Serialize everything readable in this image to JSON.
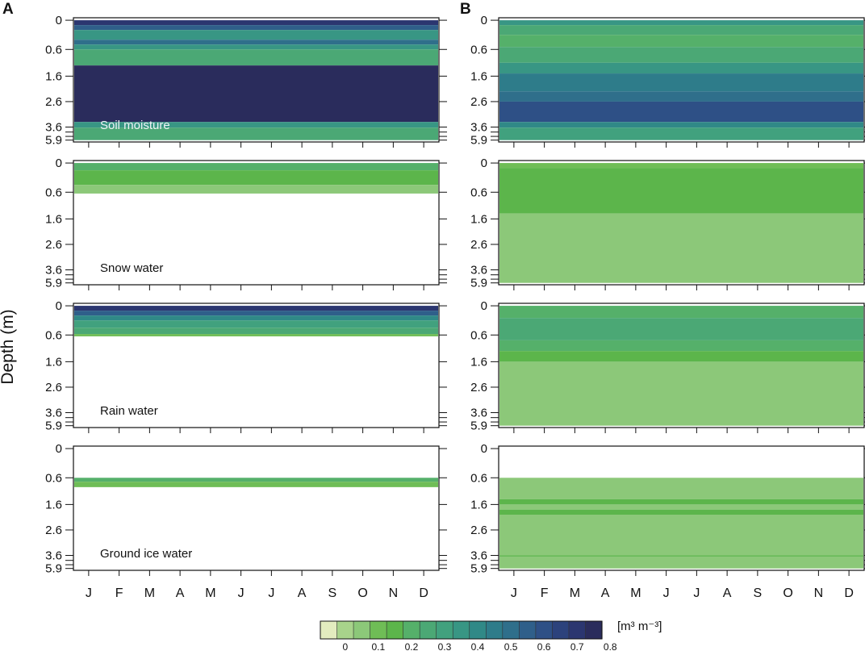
{
  "figure": {
    "y_axis_label": "Depth (m)",
    "colorbar_units": "[m³ m⁻³]"
  },
  "chart_data": {
    "type": "heatmap",
    "description": "Monthly soil water content contour plots versus depth; column A and column B, four water components each",
    "months": [
      "J",
      "F",
      "M",
      "A",
      "M",
      "J",
      "J",
      "A",
      "S",
      "O",
      "N",
      "D"
    ],
    "depth_ticks": [
      "0",
      "0.6",
      "1.6",
      "2.6",
      "3.6",
      "5.9"
    ],
    "colorbar": {
      "levels": [
        0,
        0.05,
        0.1,
        0.15,
        0.2,
        0.25,
        0.3,
        0.35,
        0.4,
        0.45,
        0.5,
        0.55,
        0.6,
        0.65,
        0.7,
        0.75,
        0.8,
        0.85
      ],
      "tick_labels": [
        "0",
        "0.1",
        "0.2",
        "0.3",
        "0.4",
        "0.5",
        "0.6",
        "0.7",
        "0.8"
      ],
      "colors": [
        "#e3ecbf",
        "#a8d38b",
        "#8cc879",
        "#6fbd56",
        "#5cb54b",
        "#55b06a",
        "#4ba875",
        "#41a17e",
        "#389684",
        "#308987",
        "#2e7c8a",
        "#2f6f8b",
        "#2f5f8a",
        "#2e5086",
        "#2c427c",
        "#2b3670",
        "#2a2c5c"
      ],
      "label": "[m³ m⁻³]"
    },
    "panels": [
      {
        "column": "A",
        "name": "Soil moisture",
        "layers": [
          {
            "from": 0,
            "to": 0.1,
            "value": 0.75
          },
          {
            "from": 0.1,
            "to": 0.2,
            "value": 0.6
          },
          {
            "from": 0.2,
            "to": 0.4,
            "value": 0.42
          },
          {
            "from": 0.4,
            "to": 0.5,
            "value": 0.55
          },
          {
            "from": 0.5,
            "to": 0.6,
            "value": 0.42
          },
          {
            "from": 0.6,
            "to": 1.2,
            "value": 0.34
          },
          {
            "from": 1.2,
            "to": 3.4,
            "value": 0.8
          },
          {
            "from": 3.4,
            "to": 3.7,
            "value": 0.42
          },
          {
            "from": 3.7,
            "to": 5.9,
            "value": 0.33
          }
        ]
      },
      {
        "column": "A",
        "name": "Snow water",
        "layers": [
          {
            "from": 0,
            "to": 0.15,
            "value": 0.25
          },
          {
            "from": 0.15,
            "to": 0.45,
            "value": 0.2
          },
          {
            "from": 0.45,
            "to": 0.65,
            "value": 0.12
          }
        ]
      },
      {
        "column": "A",
        "name": "Rain water",
        "layers": [
          {
            "from": 0,
            "to": 0.1,
            "value": 0.75
          },
          {
            "from": 0.1,
            "to": 0.2,
            "value": 0.6
          },
          {
            "from": 0.2,
            "to": 0.3,
            "value": 0.48
          },
          {
            "from": 0.3,
            "to": 0.45,
            "value": 0.38
          },
          {
            "from": 0.45,
            "to": 0.58,
            "value": 0.3
          },
          {
            "from": 0.58,
            "to": 0.65,
            "value": 0.15
          }
        ]
      },
      {
        "column": "A",
        "name": "Ground ice water",
        "layers": [
          {
            "from": 0.6,
            "to": 0.75,
            "value": 0.25
          },
          {
            "from": 0.75,
            "to": 0.95,
            "value": 0.15
          }
        ]
      },
      {
        "column": "B",
        "name": "",
        "layers": [
          {
            "from": 0,
            "to": 0.1,
            "value": 0.42
          },
          {
            "from": 0.1,
            "to": 0.3,
            "value": 0.32
          },
          {
            "from": 0.3,
            "to": 0.55,
            "value": 0.25
          },
          {
            "from": 0.55,
            "to": 1.1,
            "value": 0.3
          },
          {
            "from": 1.1,
            "to": 1.5,
            "value": 0.4
          },
          {
            "from": 1.5,
            "to": 2.2,
            "value": 0.5
          },
          {
            "from": 2.2,
            "to": 2.6,
            "value": 0.55
          },
          {
            "from": 2.6,
            "to": 3.4,
            "value": 0.65
          },
          {
            "from": 3.4,
            "to": 3.7,
            "value": 0.45
          },
          {
            "from": 3.7,
            "to": 5.9,
            "value": 0.38
          }
        ]
      },
      {
        "column": "B",
        "name": "",
        "layers": [
          {
            "from": 0,
            "to": 0.1,
            "value": 0.15
          },
          {
            "from": 0.1,
            "to": 1.4,
            "value": 0.2
          },
          {
            "from": 1.4,
            "to": 5.9,
            "value": 0.1
          }
        ]
      },
      {
        "column": "B",
        "name": "",
        "layers": [
          {
            "from": 0,
            "to": 0.25,
            "value": 0.28
          },
          {
            "from": 0.25,
            "to": 0.8,
            "value": 0.32
          },
          {
            "from": 0.8,
            "to": 1.2,
            "value": 0.25
          },
          {
            "from": 1.2,
            "to": 1.6,
            "value": 0.2
          },
          {
            "from": 1.6,
            "to": 5.9,
            "value": 0.1
          }
        ]
      },
      {
        "column": "B",
        "name": "",
        "layers": [
          {
            "from": 0.6,
            "to": 1.4,
            "value": 0.1
          },
          {
            "from": 1.4,
            "to": 1.6,
            "value": 0.2
          },
          {
            "from": 1.6,
            "to": 1.8,
            "value": 0.1
          },
          {
            "from": 1.8,
            "to": 2.0,
            "value": 0.2
          },
          {
            "from": 2.0,
            "to": 3.6,
            "value": 0.1
          },
          {
            "from": 3.6,
            "to": 3.8,
            "value": 0.2
          },
          {
            "from": 3.8,
            "to": 5.9,
            "value": 0.1
          }
        ]
      }
    ]
  }
}
